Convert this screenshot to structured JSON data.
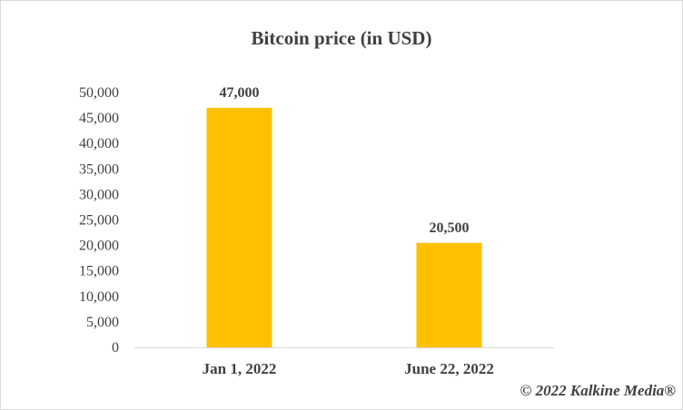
{
  "chart_data": {
    "type": "bar",
    "title": "Bitcoin price (in USD)",
    "categories": [
      "Jan 1, 2022",
      "June 22, 2022"
    ],
    "values": [
      47000,
      20500
    ],
    "data_labels": [
      "47,000",
      "20,500"
    ],
    "xlabel": "",
    "ylabel": "",
    "ylim": [
      0,
      50000
    ],
    "yticks": [
      0,
      5000,
      10000,
      15000,
      20000,
      25000,
      30000,
      35000,
      40000,
      45000,
      50000
    ],
    "ytick_labels": [
      "0",
      "5,000",
      "10,000",
      "15,000",
      "20,000",
      "25,000",
      "30,000",
      "35,000",
      "40,000",
      "45,000",
      "50,000"
    ],
    "grid": false,
    "legend": "none",
    "bar_color": "#FFC000"
  },
  "credit": "© 2022 Kalkine Media®"
}
